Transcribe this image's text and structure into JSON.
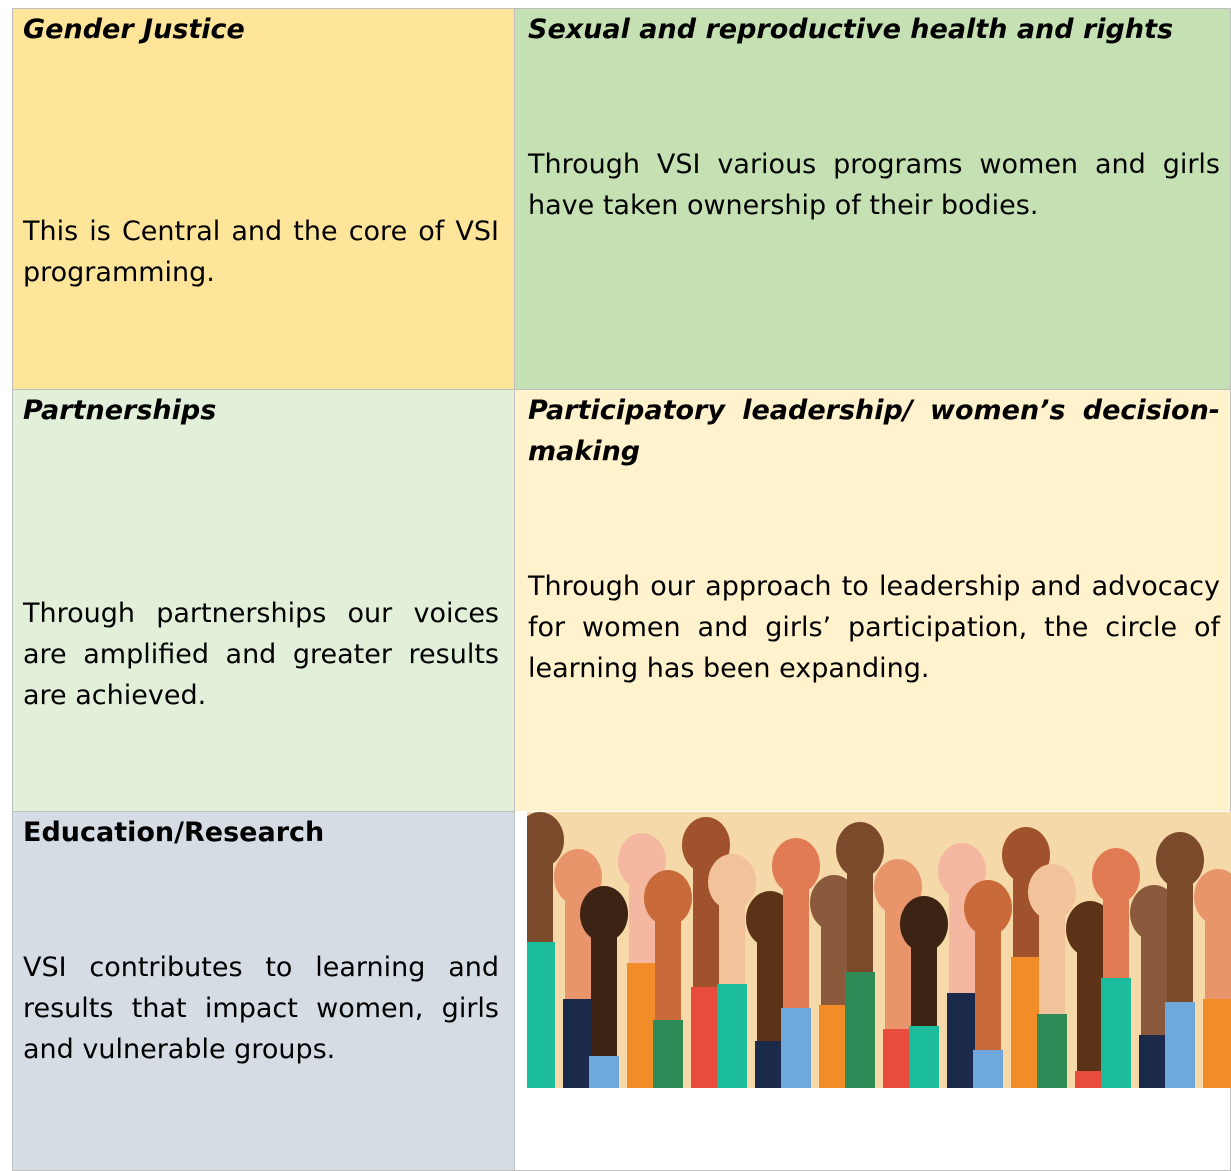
{
  "table": {
    "cells": [
      {
        "title": "Gender Justice",
        "body": "This is Central and the core of VSI programming."
      },
      {
        "title": "Sexual and reproductive health and rights",
        "body": "Through VSI various programs women and girls have taken ownership of their bodies."
      },
      {
        "title": "Partnerships",
        "body": "Through partnerships our voices are amplified and greater results are achieved."
      },
      {
        "title": "Participatory leadership/ women’s decision-making",
        "body": "Through our approach to leadership and advocacy for women and girls’ participation, the circle of learning has been expanding."
      },
      {
        "title": "Education/Research",
        "body": "VSI contributes to learning and results that impact women, girls and vulnerable groups."
      }
    ]
  }
}
